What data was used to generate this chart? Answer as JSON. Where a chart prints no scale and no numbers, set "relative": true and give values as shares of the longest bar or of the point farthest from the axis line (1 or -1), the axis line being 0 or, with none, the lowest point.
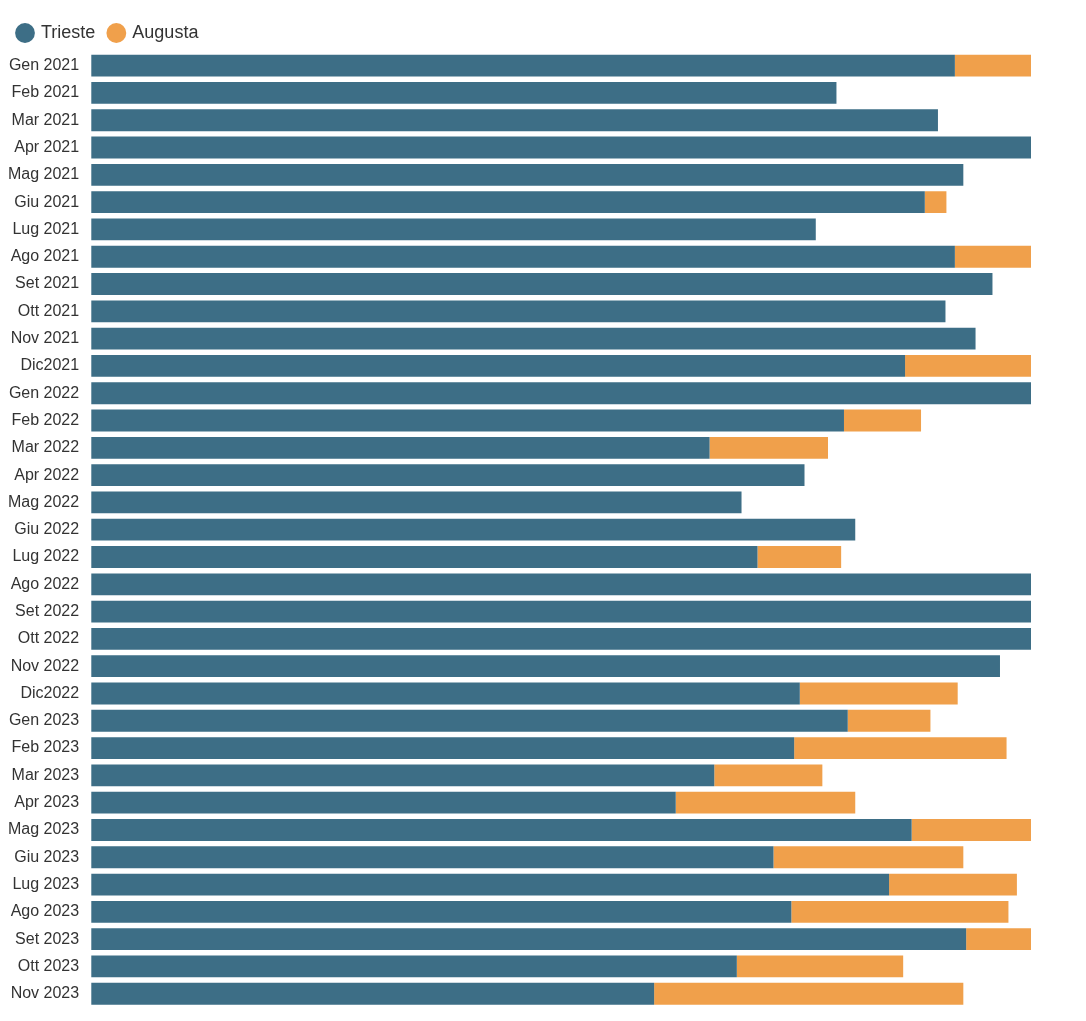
{
  "chart_data": {
    "type": "bar",
    "orientation": "horizontal",
    "stacked": true,
    "relative": true,
    "legend": "top left",
    "categories": [
      "Gen 2021",
      "Feb 2021",
      "Mar 2021",
      "Apr 2021",
      "Mag 2021",
      "Giu 2021",
      "Lug 2021",
      "Ago 2021",
      "Set 2021",
      "Ott 2021",
      "Nov 2021",
      "Dic2021",
      "Gen 2022",
      "Feb 2022",
      "Mar 2022",
      "Apr 2022",
      "Mag 2022",
      "Giu 2022",
      "Lug 2022",
      "Ago 2022",
      "Set 2022",
      "Ott 2022",
      "Nov 2022",
      "Dic2022",
      "Gen 2023",
      "Feb 2023",
      "Mar 2023",
      "Apr 2023",
      "Mag 2023",
      "Giu 2023",
      "Lug 2023",
      "Ago 2023",
      "Set 2023",
      "Ott 2023",
      "Nov 2023"
    ],
    "series": [
      {
        "name": "Trieste",
        "color": "#3d6e86",
        "values": [
          0.919,
          0.793,
          0.901,
          1,
          0.928,
          0.887,
          0.771,
          0.919,
          0.959,
          0.909,
          0.941,
          0.866,
          1,
          0.801,
          0.658,
          0.759,
          0.692,
          0.813,
          0.709,
          1,
          1,
          1,
          0.967,
          0.754,
          0.805,
          0.748,
          0.663,
          0.622,
          0.873,
          0.726,
          0.849,
          0.745,
          0.931,
          0.687,
          0.599
        ]
      },
      {
        "name": "Augusta",
        "color": "#f0a04b",
        "values": [
          0.081,
          null,
          null,
          null,
          null,
          0.023,
          null,
          0.081,
          null,
          null,
          null,
          0.134,
          null,
          0.082,
          0.126,
          null,
          null,
          null,
          0.089,
          null,
          null,
          null,
          null,
          0.168,
          0.088,
          0.226,
          0.115,
          0.191,
          0.127,
          0.202,
          0.136,
          0.231,
          0.069,
          0.177,
          0.329
        ]
      }
    ]
  }
}
